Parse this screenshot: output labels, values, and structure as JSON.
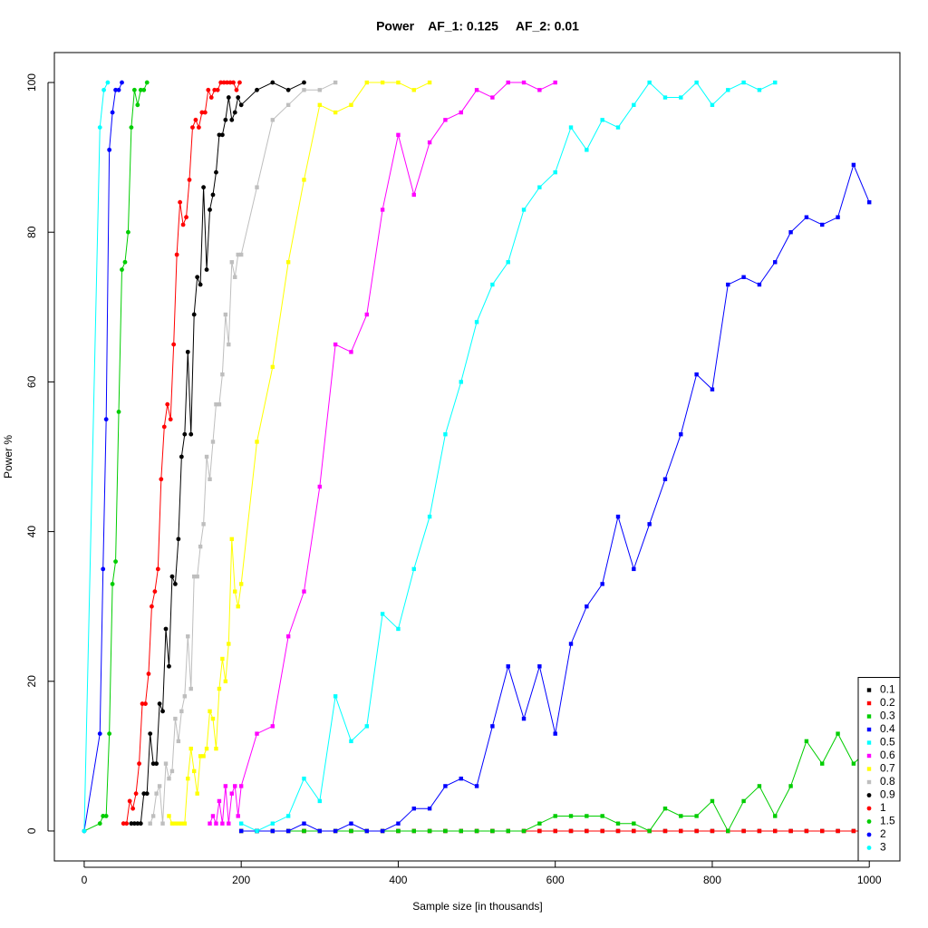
{
  "chart_data": {
    "type": "line",
    "title": "Power    AF_1: 0.125     AF_2: 0.01",
    "x_label": "Sample size [in thousands]",
    "y_label": "Power %",
    "xlim": [
      -38,
      1039
    ],
    "ylim": [
      -4,
      104
    ],
    "xticks": [
      0,
      200,
      400,
      600,
      800,
      1000
    ],
    "yticks": [
      0,
      20,
      40,
      60,
      80,
      100
    ],
    "legend": "bottom-right",
    "series": [
      {
        "name": "0.1",
        "color": "#000000",
        "marker": "square",
        "x": [
          200,
          220,
          240,
          260,
          280,
          300,
          320,
          340,
          360,
          380,
          400,
          420,
          440,
          460,
          480,
          500,
          520,
          540,
          560,
          580,
          600,
          620,
          640,
          660,
          680,
          700,
          720,
          740,
          760,
          780,
          800,
          820,
          840,
          860,
          880,
          900,
          920,
          940,
          960,
          980,
          1000
        ],
        "values": [
          0,
          0,
          0,
          0,
          0,
          0,
          0,
          0,
          0,
          0,
          0,
          0,
          0,
          0,
          0,
          0,
          0,
          0,
          0,
          0,
          0,
          0,
          0,
          0,
          0,
          0,
          0,
          0,
          0,
          0,
          0,
          0,
          0,
          0,
          0,
          0,
          0,
          0,
          0,
          0,
          0
        ]
      },
      {
        "name": "0.2",
        "color": "#ff0000",
        "marker": "square",
        "x": [
          200,
          220,
          240,
          260,
          280,
          300,
          320,
          340,
          360,
          380,
          400,
          420,
          440,
          460,
          480,
          500,
          520,
          540,
          560,
          580,
          600,
          620,
          640,
          660,
          680,
          700,
          720,
          740,
          760,
          780,
          800,
          820,
          840,
          860,
          880,
          900,
          920,
          940,
          960,
          980,
          1000
        ],
        "values": [
          0,
          0,
          0,
          0,
          0,
          0,
          0,
          0,
          0,
          0,
          0,
          0,
          0,
          0,
          0,
          0,
          0,
          0,
          0,
          0,
          0,
          0,
          0,
          0,
          0,
          0,
          0,
          0,
          0,
          0,
          0,
          0,
          0,
          0,
          0,
          0,
          0,
          0,
          0,
          0,
          0
        ]
      },
      {
        "name": "0.3",
        "color": "#00cd00",
        "marker": "square",
        "x": [
          200,
          220,
          240,
          260,
          280,
          300,
          320,
          340,
          360,
          380,
          400,
          420,
          440,
          460,
          480,
          500,
          520,
          540,
          560,
          580,
          600,
          620,
          640,
          660,
          680,
          700,
          720,
          740,
          760,
          780,
          800,
          820,
          840,
          860,
          880,
          900,
          920,
          940,
          960,
          980,
          1000
        ],
        "values": [
          0,
          0,
          0,
          0,
          0,
          0,
          0,
          0,
          0,
          0,
          0,
          0,
          0,
          0,
          0,
          0,
          0,
          0,
          0,
          1,
          2,
          2,
          2,
          2,
          1,
          1,
          0,
          3,
          2,
          2,
          4,
          0,
          4,
          6,
          2,
          6,
          12,
          9,
          13,
          9,
          11
        ]
      },
      {
        "name": "0.4",
        "color": "#0000ff",
        "marker": "square",
        "x": [
          200,
          220,
          240,
          260,
          280,
          300,
          320,
          340,
          360,
          380,
          400,
          420,
          440,
          460,
          480,
          500,
          520,
          540,
          560,
          580,
          600,
          620,
          640,
          660,
          680,
          700,
          720,
          740,
          760,
          780,
          800,
          820,
          840,
          860,
          880,
          900,
          920,
          940,
          960,
          980,
          1000
        ],
        "values": [
          0,
          0,
          0,
          0,
          1,
          0,
          0,
          1,
          0,
          0,
          1,
          3,
          3,
          6,
          7,
          6,
          14,
          22,
          15,
          22,
          13,
          25,
          30,
          33,
          42,
          35,
          41,
          47,
          53,
          61,
          59,
          73,
          74,
          73,
          76,
          80,
          82,
          81,
          82,
          89,
          84
        ]
      },
      {
        "name": "0.5",
        "color": "#00ffff",
        "marker": "square",
        "x": [
          200,
          220,
          240,
          260,
          280,
          300,
          320,
          340,
          360,
          380,
          400,
          420,
          440,
          460,
          480,
          500,
          520,
          540,
          560,
          580,
          600,
          620,
          640,
          660,
          680,
          700,
          720,
          740,
          760,
          780,
          800,
          820,
          840,
          860,
          880
        ],
        "values": [
          1,
          0,
          1,
          2,
          7,
          4,
          18,
          12,
          14,
          29,
          27,
          35,
          42,
          53,
          60,
          68,
          73,
          76,
          83,
          86,
          88,
          94,
          91,
          95,
          94,
          97,
          100,
          98,
          98,
          100,
          97,
          99,
          100,
          99,
          100
        ]
      },
      {
        "name": "0.6",
        "color": "#ff00ff",
        "marker": "square",
        "x": [
          160,
          164,
          168,
          172,
          176,
          180,
          184,
          188,
          192,
          196,
          200,
          220,
          240,
          260,
          280,
          300,
          320,
          340,
          360,
          380,
          400,
          420,
          440,
          460,
          480,
          500,
          520,
          540,
          560,
          580,
          600
        ],
        "values": [
          1,
          2,
          1,
          4,
          1,
          6,
          1,
          5,
          6,
          2,
          6,
          13,
          14,
          26,
          32,
          46,
          65,
          64,
          69,
          83,
          93,
          85,
          92,
          95,
          96,
          99,
          98,
          100,
          100,
          99,
          100
        ]
      },
      {
        "name": "0.7",
        "color": "#ffff00",
        "marker": "square",
        "x": [
          108,
          112,
          116,
          120,
          124,
          128,
          132,
          136,
          140,
          144,
          148,
          152,
          156,
          160,
          164,
          168,
          172,
          176,
          180,
          184,
          188,
          192,
          196,
          200,
          220,
          240,
          260,
          280,
          300,
          320,
          340,
          360,
          380,
          400,
          420,
          440
        ],
        "values": [
          2,
          1,
          1,
          1,
          1,
          1,
          7,
          11,
          8,
          5,
          10,
          10,
          11,
          16,
          15,
          11,
          19,
          23,
          20,
          25,
          39,
          32,
          30,
          33,
          52,
          62,
          76,
          87,
          97,
          96,
          97,
          100,
          100,
          100,
          99,
          100
        ]
      },
      {
        "name": "0.8",
        "color": "#bebebe",
        "marker": "square",
        "x": [
          84,
          88,
          92,
          96,
          100,
          104,
          108,
          112,
          116,
          120,
          124,
          128,
          132,
          136,
          140,
          144,
          148,
          152,
          156,
          160,
          164,
          168,
          172,
          176,
          180,
          184,
          188,
          192,
          196,
          200,
          220,
          240,
          260,
          280,
          300,
          320
        ],
        "values": [
          1,
          2,
          5,
          6,
          1,
          9,
          7,
          8,
          15,
          12,
          16,
          18,
          26,
          19,
          34,
          34,
          38,
          41,
          50,
          47,
          52,
          57,
          57,
          61,
          69,
          65,
          76,
          74,
          77,
          77,
          86,
          95,
          97,
          99,
          99,
          100
        ]
      },
      {
        "name": "0.9",
        "color": "#000000",
        "marker": "circle",
        "x": [
          60,
          64,
          68,
          72,
          76,
          80,
          84,
          88,
          92,
          96,
          100,
          104,
          108,
          112,
          116,
          120,
          124,
          128,
          132,
          136,
          140,
          144,
          148,
          152,
          156,
          160,
          164,
          168,
          172,
          176,
          180,
          184,
          188,
          192,
          196,
          200,
          220,
          240,
          260,
          280
        ],
        "values": [
          1,
          1,
          1,
          1,
          5,
          5,
          13,
          9,
          9,
          17,
          16,
          27,
          22,
          34,
          33,
          39,
          50,
          53,
          64,
          53,
          69,
          74,
          73,
          86,
          75,
          83,
          85,
          88,
          93,
          93,
          95,
          98,
          95,
          96,
          98,
          97,
          99,
          100,
          99,
          100
        ]
      },
      {
        "name": "1",
        "color": "#ff0000",
        "marker": "circle",
        "x": [
          50,
          54,
          58,
          62,
          66,
          70,
          74,
          78,
          82,
          86,
          90,
          94,
          98,
          102,
          106,
          110,
          114,
          118,
          122,
          126,
          130,
          134,
          138,
          142,
          146,
          150,
          154,
          158,
          162,
          166,
          170,
          174,
          178,
          182,
          186,
          190,
          194,
          198
        ],
        "values": [
          1,
          1,
          4,
          3,
          5,
          9,
          17,
          17,
          21,
          30,
          32,
          35,
          47,
          54,
          57,
          55,
          65,
          77,
          84,
          81,
          82,
          87,
          94,
          95,
          94,
          96,
          96,
          99,
          98,
          99,
          99,
          100,
          100,
          100,
          100,
          100,
          99,
          100
        ]
      },
      {
        "name": "1.5",
        "color": "#00cd00",
        "marker": "circle",
        "x": [
          0,
          20,
          24,
          28,
          32,
          36,
          40,
          44,
          48,
          52,
          56,
          60,
          64,
          68,
          72,
          76,
          80
        ],
        "values": [
          0,
          1,
          2,
          2,
          13,
          33,
          36,
          56,
          75,
          76,
          80,
          94,
          99,
          97,
          99,
          99,
          100
        ]
      },
      {
        "name": "2",
        "color": "#0000ff",
        "marker": "circle",
        "x": [
          0,
          20,
          24,
          28,
          32,
          36,
          40,
          44,
          48
        ],
        "values": [
          0,
          13,
          35,
          55,
          91,
          96,
          99,
          99,
          100
        ]
      },
      {
        "name": "3",
        "color": "#00ffff",
        "marker": "circle",
        "x": [
          0,
          20,
          25,
          30
        ],
        "values": [
          0,
          94,
          99,
          100
        ]
      }
    ]
  }
}
